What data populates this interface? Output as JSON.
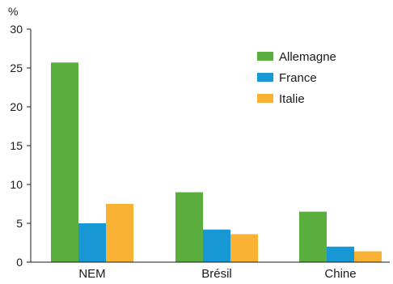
{
  "chart_data": {
    "type": "bar",
    "unit": "%",
    "categories": [
      "NEM",
      "Brésil",
      "Chine"
    ],
    "series": [
      {
        "name": "Allemagne",
        "color": "#5aae3e",
        "values": [
          25.7,
          9.0,
          6.5
        ]
      },
      {
        "name": "France",
        "color": "#1798d5",
        "values": [
          5.0,
          4.2,
          2.0
        ]
      },
      {
        "name": "Italie",
        "color": "#f9b233",
        "values": [
          7.5,
          3.6,
          1.4
        ]
      }
    ],
    "ylim": [
      0,
      30
    ],
    "yticks": [
      0,
      5,
      10,
      15,
      20,
      25,
      30
    ],
    "grid": false,
    "legend_position": "top-right"
  }
}
